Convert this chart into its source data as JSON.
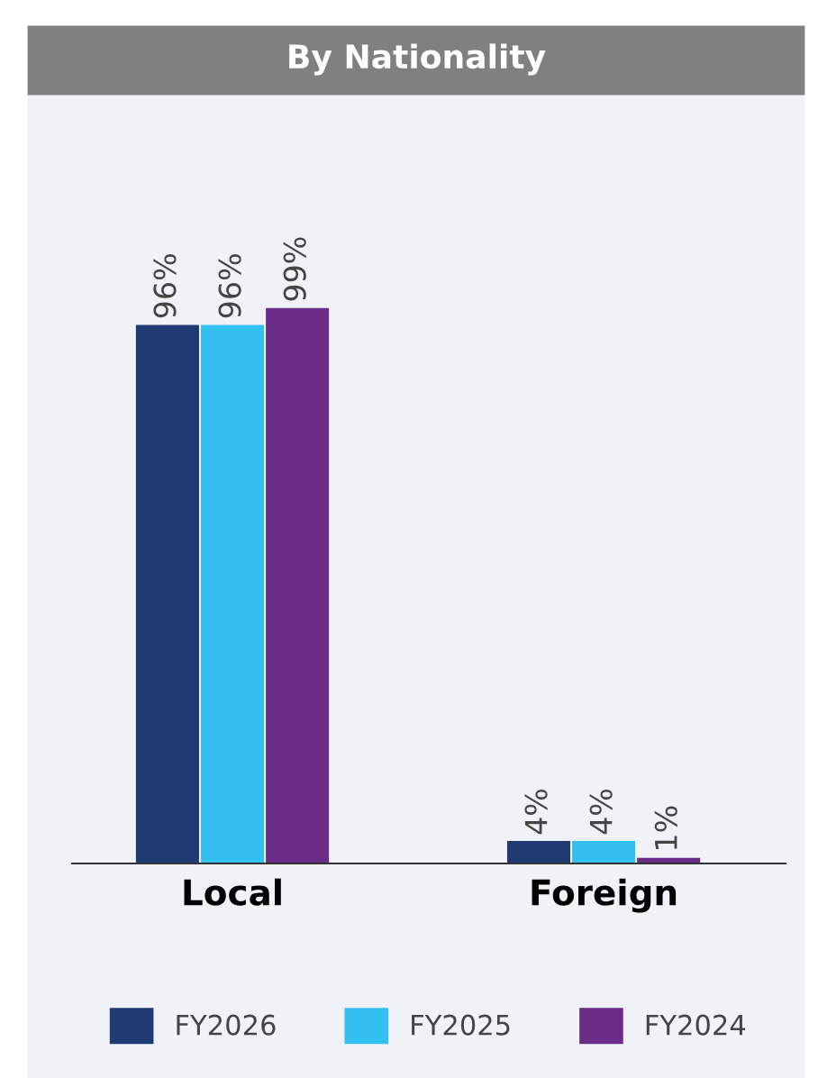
{
  "chart_data": {
    "type": "bar",
    "title": "By Nationality",
    "categories": [
      "Local",
      "Foreign"
    ],
    "series": [
      {
        "name": "FY2026",
        "color": "#1f3a73",
        "values": [
          96,
          4
        ],
        "value_labels": [
          "96%",
          "4%"
        ]
      },
      {
        "name": "FY2025",
        "color": "#33bfef",
        "values": [
          96,
          4
        ],
        "value_labels": [
          "96%",
          "4%"
        ]
      },
      {
        "name": "FY2024",
        "color": "#6b2d87",
        "values": [
          99,
          1
        ],
        "value_labels": [
          "99%",
          "1%"
        ]
      }
    ],
    "legend": "bottom"
  }
}
